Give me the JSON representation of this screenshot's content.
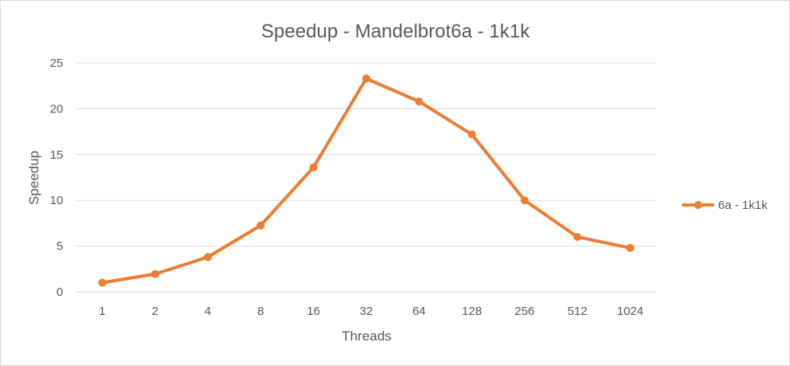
{
  "chart_data": {
    "type": "line",
    "title": "Speedup - Mandelbrot6a - 1k1k",
    "xlabel": "Threads",
    "ylabel": "Speedup",
    "categories": [
      "1",
      "2",
      "4",
      "8",
      "16",
      "32",
      "64",
      "128",
      "256",
      "512",
      "1024"
    ],
    "series": [
      {
        "name": "6a - 1k1k",
        "color": "#ED7D31",
        "values": [
          1.0,
          1.95,
          3.8,
          7.25,
          13.6,
          23.3,
          20.8,
          17.2,
          10.0,
          6.0,
          4.8
        ]
      }
    ],
    "ylim": [
      0,
      25
    ],
    "yticks": [
      "0",
      "5",
      "10",
      "15",
      "20",
      "25"
    ],
    "grid": true,
    "legend_position": "right"
  }
}
